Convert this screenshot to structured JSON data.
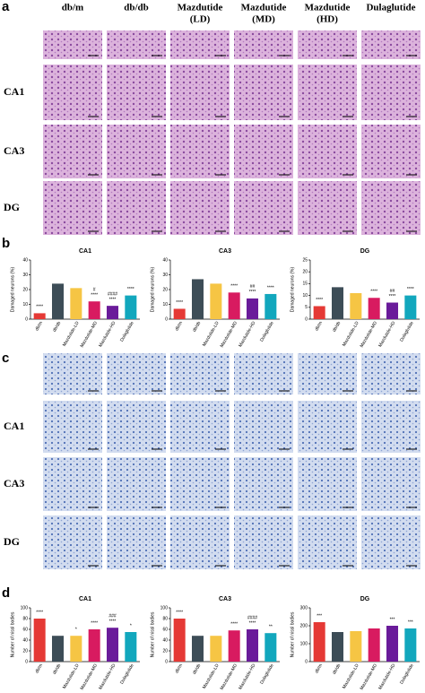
{
  "panel_labels": [
    "a",
    "b",
    "c",
    "d"
  ],
  "columns": [
    [
      "db/m"
    ],
    [
      "db/db"
    ],
    [
      "Mazdutide",
      "(LD)"
    ],
    [
      "Mazdutide",
      "(MD)"
    ],
    [
      "Mazdutide",
      "(HD)"
    ],
    [
      "Dulaglutide"
    ]
  ],
  "rows": [
    "CA1",
    "CA3",
    "DG"
  ],
  "chart_data": [
    {
      "type": "bar",
      "title": "CA1",
      "y_label": "Damaged neurons (%)",
      "categories": [
        "db/m",
        "db/db",
        "Mazdutide-LD",
        "Mazdutide-MD",
        "Mazdutide-HD",
        "Dulaglutide"
      ],
      "values": [
        4,
        24,
        21,
        12,
        9,
        16
      ],
      "colors": [
        "#e53935",
        "#3d4d57",
        "#f6c544",
        "#d81b60",
        "#6a1b9a",
        "#12a7bd"
      ],
      "annotations": [
        [
          "****"
        ],
        null,
        null,
        [
          "#",
          "****"
        ],
        [
          "####",
          "****"
        ],
        [
          "****"
        ]
      ],
      "ylim": [
        0,
        40
      ],
      "yticks": [
        0,
        10,
        20,
        30,
        40
      ]
    },
    {
      "type": "bar",
      "title": "CA3",
      "y_label": "Damaged neurons (%)",
      "categories": [
        "db/m",
        "db/db",
        "Mazdutide-LD",
        "Mazdutide-MD",
        "Mazdutide-HD",
        "Dulaglutide"
      ],
      "values": [
        7,
        27,
        24,
        18,
        14,
        17
      ],
      "colors": [
        "#e53935",
        "#3d4d57",
        "#f6c544",
        "#d81b60",
        "#6a1b9a",
        "#12a7bd"
      ],
      "annotations": [
        [
          "****"
        ],
        null,
        null,
        [
          "****"
        ],
        [
          "##",
          "****"
        ],
        [
          "****"
        ]
      ],
      "ylim": [
        0,
        40
      ],
      "yticks": [
        0,
        10,
        20,
        30,
        40
      ]
    },
    {
      "type": "bar",
      "title": "DG",
      "y_label": "Damaged neurons (%)",
      "categories": [
        "db/m",
        "db/db",
        "Mazdutide-LD",
        "Mazdutide-MD",
        "Mazdutide-HD",
        "Dulaglutide"
      ],
      "values": [
        5.5,
        13.5,
        11,
        9,
        7,
        10
      ],
      "colors": [
        "#e53935",
        "#3d4d57",
        "#f6c544",
        "#d81b60",
        "#6a1b9a",
        "#12a7bd"
      ],
      "annotations": [
        [
          "****"
        ],
        null,
        null,
        [
          "****"
        ],
        [
          "##",
          "****"
        ],
        [
          "****"
        ]
      ],
      "ylim": [
        0,
        25
      ],
      "yticks": [
        0,
        5,
        10,
        15,
        20,
        25
      ]
    },
    {
      "type": "bar",
      "title": "CA1",
      "y_label": "Number of nissl bodies",
      "categories": [
        "db/m",
        "db/db",
        "Mazdutide-LD",
        "Mazdutide-MD",
        "Mazdutide-HD",
        "Dulaglutide"
      ],
      "values": [
        80,
        48,
        48,
        60,
        63,
        55
      ],
      "colors": [
        "#e53935",
        "#3d4d57",
        "#f6c544",
        "#d81b60",
        "#6a1b9a",
        "#12a7bd"
      ],
      "annotations": [
        [
          "****"
        ],
        null,
        [
          "*"
        ],
        [
          "****"
        ],
        [
          "###",
          "****"
        ],
        [
          "*"
        ]
      ],
      "ylim": [
        0,
        100
      ],
      "yticks": [
        0,
        20,
        40,
        60,
        80,
        100
      ]
    },
    {
      "type": "bar",
      "title": "CA3",
      "y_label": "Number of nissl bodies",
      "categories": [
        "db/m",
        "db/db",
        "Mazdutide-LD",
        "Mazdutide-MD",
        "Mazdutide-HD",
        "Dulaglutide"
      ],
      "values": [
        80,
        48,
        48,
        58,
        60,
        53
      ],
      "colors": [
        "#e53935",
        "#3d4d57",
        "#f6c544",
        "#d81b60",
        "#6a1b9a",
        "#12a7bd"
      ],
      "annotations": [
        [
          "****"
        ],
        null,
        null,
        [
          "****"
        ],
        [
          "####",
          "****"
        ],
        [
          "**"
        ]
      ],
      "ylim": [
        0,
        100
      ],
      "yticks": [
        0,
        20,
        40,
        60,
        80,
        100
      ]
    },
    {
      "type": "bar",
      "title": "DG",
      "y_label": "Number of nissl bodies",
      "categories": [
        "db/m",
        "db/db",
        "Mazdutide-LD",
        "Mazdutide-MD",
        "Mazdutide-HD",
        "Dulaglutide"
      ],
      "values": [
        220,
        165,
        170,
        185,
        200,
        185
      ],
      "colors": [
        "#e53935",
        "#3d4d57",
        "#f6c544",
        "#d81b60",
        "#6a1b9a",
        "#12a7bd"
      ],
      "annotations": [
        [
          "***"
        ],
        null,
        null,
        null,
        [
          "***"
        ],
        [
          "***"
        ]
      ],
      "ylim": [
        0,
        300
      ],
      "yticks": [
        0,
        100,
        200,
        300
      ]
    }
  ]
}
